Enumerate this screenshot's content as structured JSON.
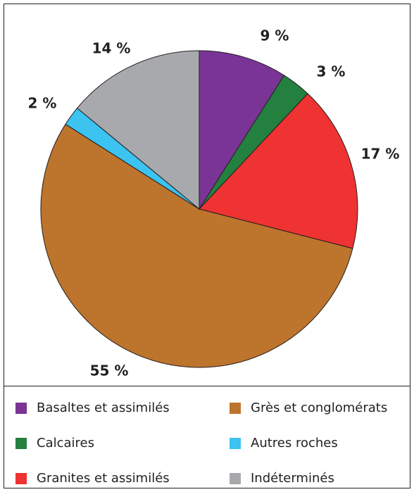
{
  "chart_data": {
    "type": "pie",
    "categories": [
      "Basaltes et assimilés",
      "Calcaires",
      "Granites et assimilés",
      "Grès et conglomérats",
      "Autres roches",
      "Indéterminés"
    ],
    "values": [
      9,
      3,
      17,
      55,
      2,
      14
    ],
    "value_labels": [
      "9 %",
      "3 %",
      "17 %",
      "55 %",
      "2 %",
      "14 %"
    ],
    "colors": [
      "#7a3496",
      "#24803f",
      "#ef3232",
      "#bd742c",
      "#3cc3ef",
      "#a7a9ac"
    ]
  }
}
